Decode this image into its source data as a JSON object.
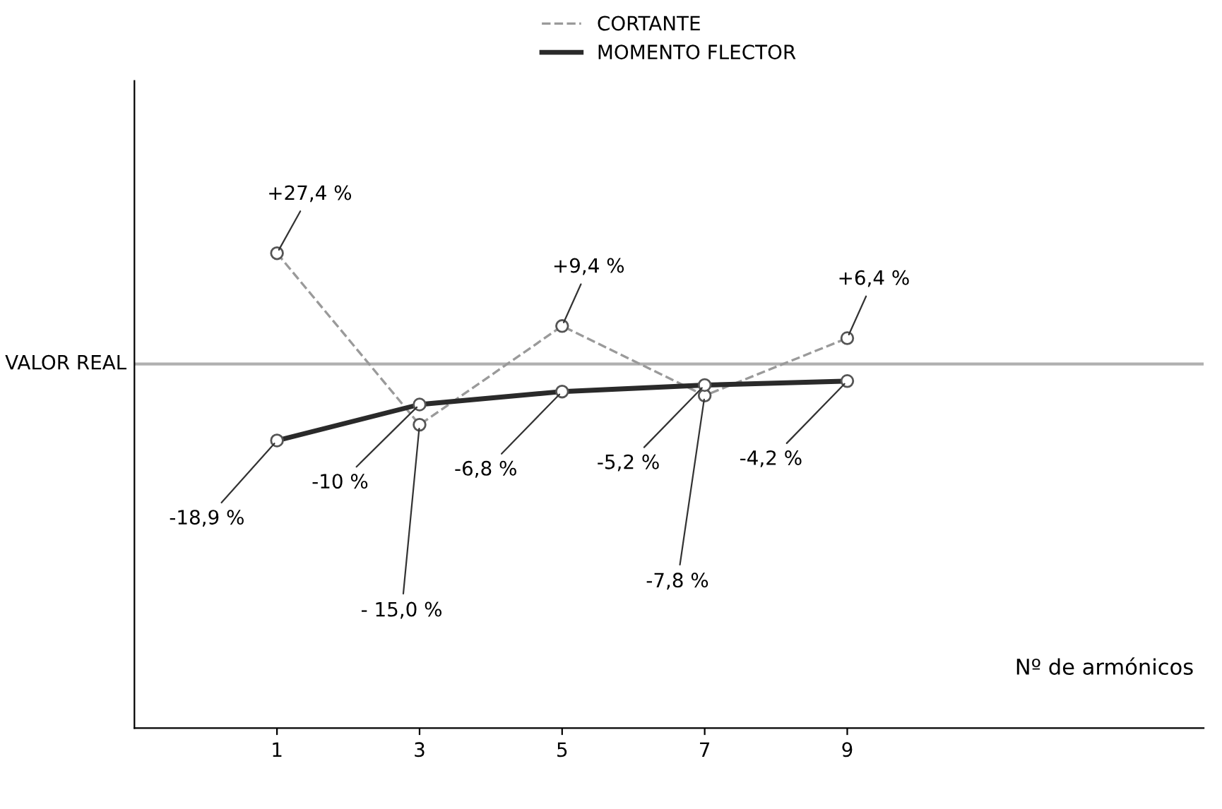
{
  "chart_data": {
    "type": "line",
    "xlabel": "Nº de armónicos",
    "x": [
      1,
      3,
      5,
      7,
      9
    ],
    "series": [
      {
        "name": "CORTANTE",
        "color": "#9a9a9a",
        "line_style": "dashed",
        "values": [
          27.4,
          -15.0,
          9.4,
          -7.8,
          6.4
        ],
        "value_labels": [
          "+27,4 %",
          "- 15,0 %",
          "+9,4 %",
          "-7,8 %",
          "+6,4 %"
        ]
      },
      {
        "name": "MOMENTO FLECTOR",
        "color": "#2a2a2a",
        "line_style": "solid",
        "values": [
          -18.9,
          -10,
          -6.8,
          -5.2,
          -4.2
        ],
        "value_labels": [
          "-18,9 %",
          "-10 %",
          "-6,8 %",
          "-5,2 %",
          "-4,2 %"
        ]
      }
    ],
    "marker": "circle",
    "ref_lines": [
      {
        "axis": "y",
        "value": 0,
        "label": "VALOR REAL",
        "color": "#b0b0b0"
      }
    ],
    "xlim": [
      -1,
      14
    ],
    "xticks": [
      1,
      3,
      5,
      7,
      9
    ],
    "ylim": [
      -90,
      70
    ],
    "tick_labels": "x",
    "grid": false,
    "legend": "top"
  }
}
